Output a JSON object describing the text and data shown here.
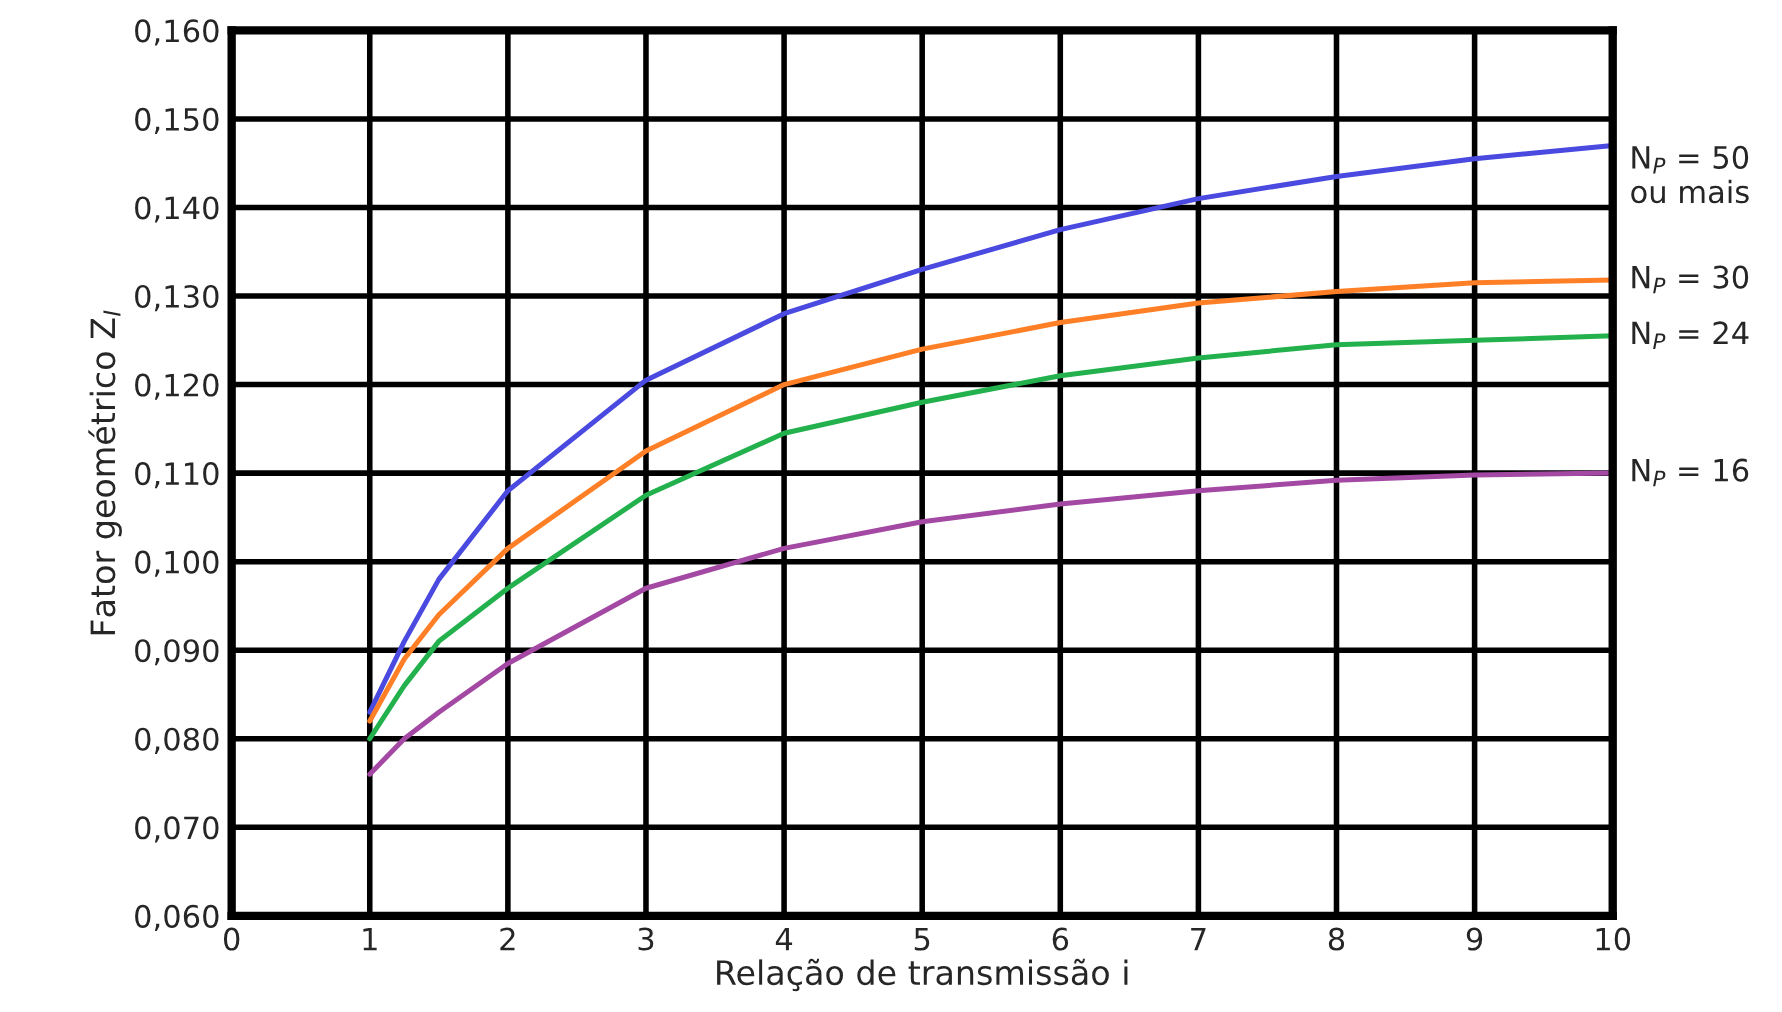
{
  "chart_data": {
    "type": "line",
    "xlabel": "Relação de transmissão i",
    "ylabel": "Fator geométrico Z$_{I}$",
    "x": [
      1,
      1.25,
      1.5,
      2,
      3,
      4,
      5,
      6,
      7,
      8,
      9,
      10
    ],
    "series": [
      {
        "name": "N$_{P}$ = 50\nou mais",
        "color": "#4a4ae0",
        "values": [
          0.083,
          0.091,
          0.098,
          0.108,
          0.1205,
          0.128,
          0.133,
          0.1375,
          0.141,
          0.1435,
          0.1455,
          0.147
        ]
      },
      {
        "name": "N$_{P}$ = 30",
        "color": "#ff7f27",
        "values": [
          0.082,
          0.089,
          0.094,
          0.1015,
          0.1125,
          0.12,
          0.124,
          0.127,
          0.1292,
          0.1305,
          0.1315,
          0.1318
        ]
      },
      {
        "name": "N$_{P}$ = 24",
        "color": "#22b14c",
        "values": [
          0.08,
          0.086,
          0.091,
          0.097,
          0.1075,
          0.1145,
          0.118,
          0.121,
          0.123,
          0.1245,
          0.125,
          0.1255
        ]
      },
      {
        "name": "N$_{P}$ = 16",
        "color": "#a349a4",
        "values": [
          0.076,
          0.08,
          0.083,
          0.0885,
          0.097,
          0.1015,
          0.1045,
          0.1065,
          0.108,
          0.1092,
          0.1098,
          0.11
        ]
      }
    ],
    "xlim": [
      0,
      10
    ],
    "xticks": [
      0,
      1,
      2,
      3,
      4,
      5,
      6,
      7,
      8,
      9,
      10
    ],
    "ylim": [
      0.06,
      0.16
    ],
    "yticks": [
      {
        "value": 0.06,
        "label": "0,060"
      },
      {
        "value": 0.07,
        "label": "0,070"
      },
      {
        "value": 0.08,
        "label": "0,080"
      },
      {
        "value": 0.09,
        "label": "0,090"
      },
      {
        "value": 0.1,
        "label": "0,100"
      },
      {
        "value": 0.11,
        "label": "0,110"
      },
      {
        "value": 0.12,
        "label": "0,120"
      },
      {
        "value": 0.13,
        "label": "0,130"
      },
      {
        "value": 0.14,
        "label": "0,140"
      },
      {
        "value": 0.15,
        "label": "0,150"
      },
      {
        "value": 0.16,
        "label": "0,160"
      }
    ],
    "grid": true,
    "marker": "none",
    "line_style": "solid"
  }
}
